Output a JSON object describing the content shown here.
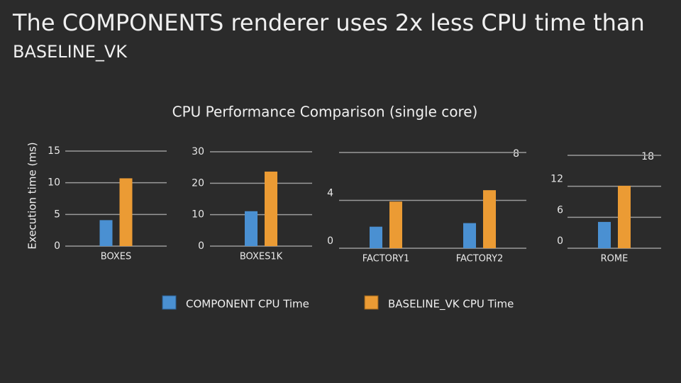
{
  "slide": {
    "title_line1": "The COMPONENTS renderer uses 2x less CPU time than",
    "title_line2": "BASELINE_VK"
  },
  "figure": {
    "title": "CPU Performance Comparison (single core)",
    "y_label": "Execution time (ms)"
  },
  "chart_data": [
    {
      "type": "bar",
      "categories": [
        "BOXES"
      ],
      "ylim": [
        0,
        15
      ],
      "yticks": [
        0,
        5,
        10,
        15
      ],
      "grid": true,
      "series": [
        {
          "name": "COMPONENT CPU Time",
          "color": "#4a90d2",
          "values": [
            4.1
          ]
        },
        {
          "name": "BASELINE_VK CPU Time",
          "color": "#eb9b34",
          "values": [
            10.7
          ]
        }
      ]
    },
    {
      "type": "bar",
      "categories": [
        "BOXES1K"
      ],
      "ylim": [
        0,
        30
      ],
      "yticks": [
        0,
        10,
        20,
        30
      ],
      "grid": true,
      "series": [
        {
          "color": "#4a90d2",
          "values": [
            11.1
          ]
        },
        {
          "color": "#eb9b34",
          "values": [
            23.7
          ]
        }
      ]
    },
    {
      "type": "bar",
      "categories": [
        "FACTORY1",
        "FACTORY2"
      ],
      "ylim": [
        0,
        8
      ],
      "yticks": [
        0,
        4,
        8
      ],
      "grid": true,
      "series": [
        {
          "color": "#4a90d2",
          "values": [
            1.8,
            2.1
          ]
        },
        {
          "color": "#eb9b34",
          "values": [
            3.9,
            4.85
          ]
        }
      ]
    },
    {
      "type": "bar",
      "categories": [
        "ROME"
      ],
      "ylim": [
        0,
        18
      ],
      "yticks": [
        0,
        6,
        12,
        18
      ],
      "grid": true,
      "series": [
        {
          "color": "#4a90d2",
          "values": [
            5.1
          ]
        },
        {
          "color": "#eb9b34",
          "values": [
            12.1
          ]
        }
      ]
    }
  ]
}
